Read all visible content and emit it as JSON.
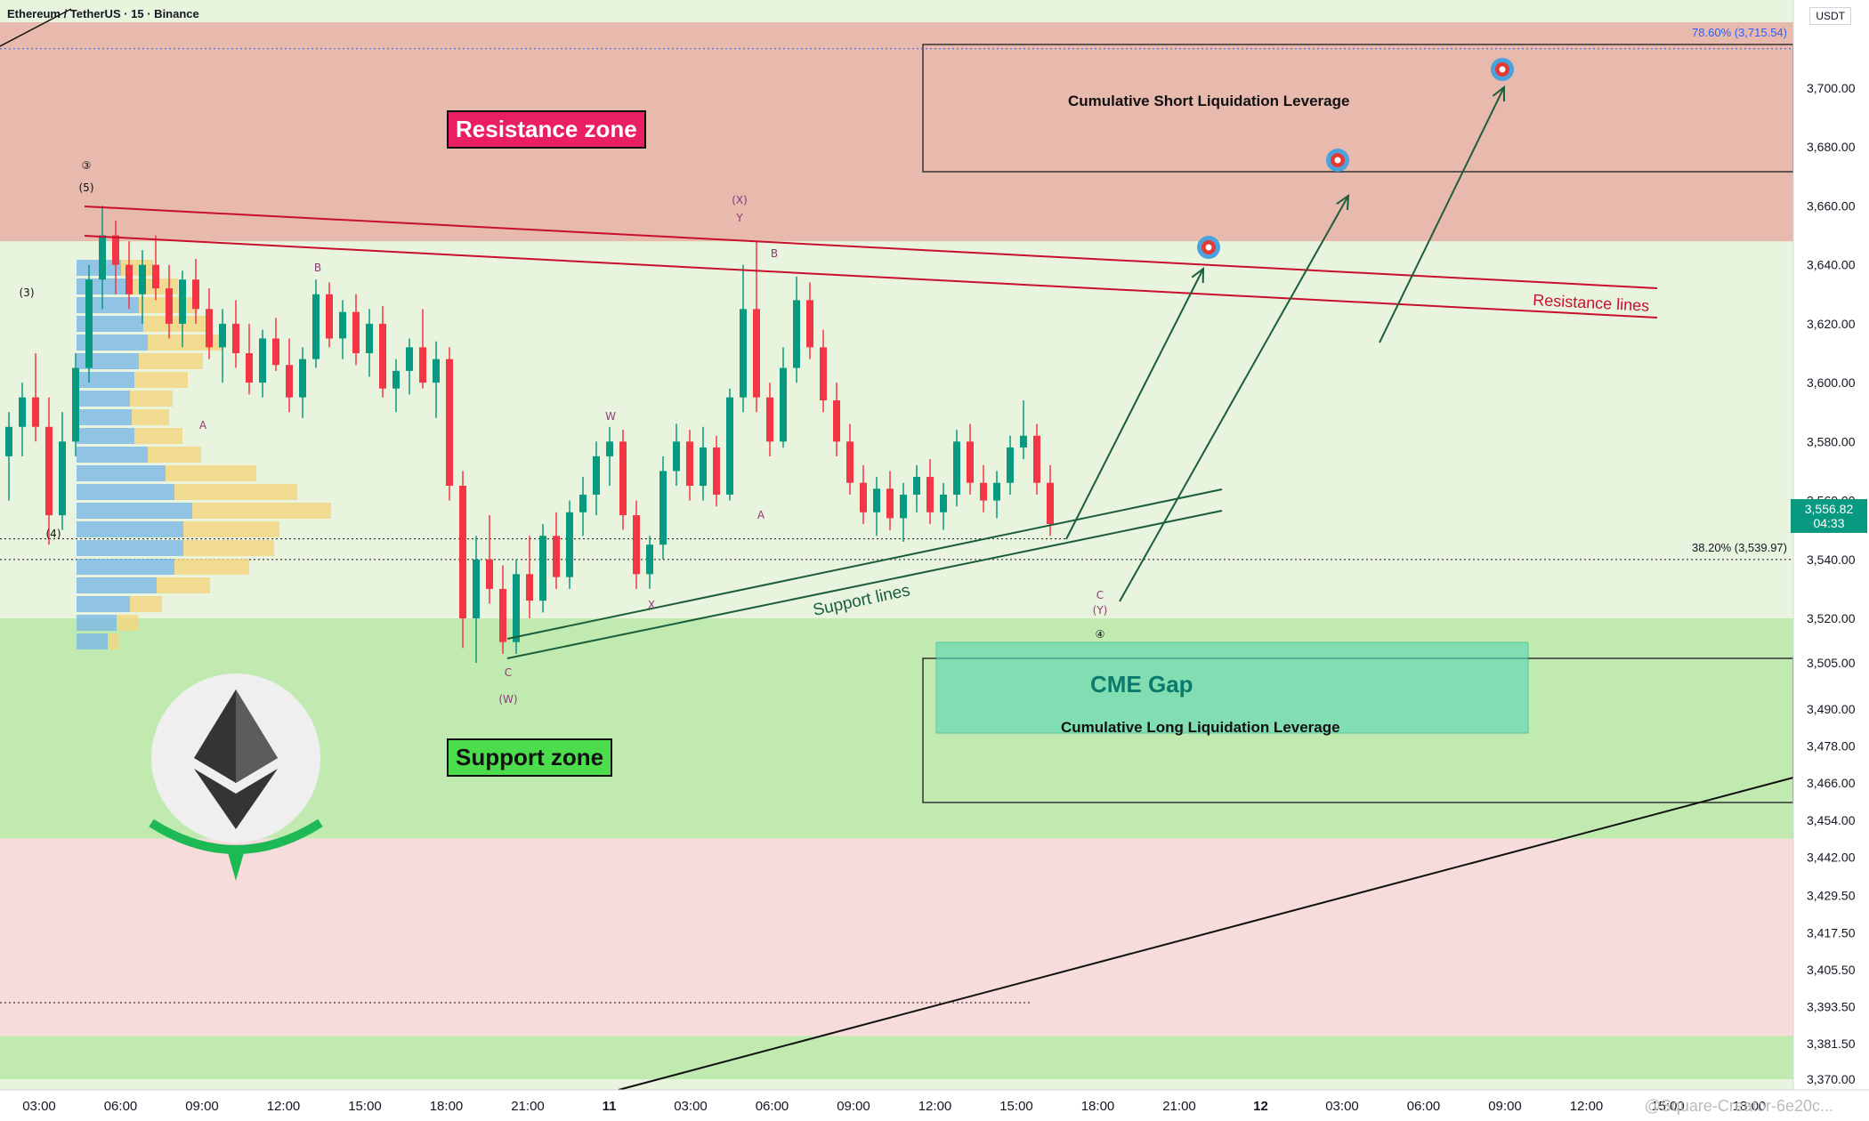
{
  "header": {
    "symbol_line": "Ethereum / TetherUS · 15 · Binance",
    "currency": "USDT"
  },
  "colors": {
    "resistance_fill": "#e8b9ad",
    "support_fill": "#c0eab0",
    "mid_fill": "#e8f4dd",
    "lower_fill": "#f7dcdc",
    "bull": "#089981",
    "bear": "#f23645",
    "resistance_line": "#c8102e",
    "support_line": "#1b5e3c"
  },
  "chart_data": {
    "type": "candlestick",
    "title": "Ethereum / TetherUS · 15 · Binance",
    "price_axis": {
      "ticks": [
        "3,700.00",
        "3,680.00",
        "3,660.00",
        "3,640.00",
        "3,620.00",
        "3,600.00",
        "3,580.00",
        "3,560.00",
        "3,540.00",
        "3,520.00",
        "3,505.00",
        "3,490.00",
        "3,478.00",
        "3,466.00",
        "3,454.00",
        "3,442.00",
        "3,429.50",
        "3,417.50",
        "3,405.50",
        "3,393.50",
        "3,381.50",
        "3,370.00"
      ],
      "current_price": "3,556.82",
      "countdown": "04:33"
    },
    "time_axis": {
      "ticks": [
        "03:00",
        "06:00",
        "09:00",
        "12:00",
        "15:00",
        "18:00",
        "21:00",
        "11",
        "03:00",
        "06:00",
        "09:00",
        "12:00",
        "15:00",
        "18:00",
        "21:00",
        "12",
        "03:00",
        "06:00",
        "09:00",
        "12:00",
        "15:00",
        "18:00"
      ]
    },
    "zones": [
      {
        "name": "Resistance zone",
        "from": 3648,
        "to": 3726
      },
      {
        "name": "Support zone",
        "from": 3448,
        "to": 3520
      },
      {
        "name": "Support zone (lower)",
        "from": 3370,
        "to": 3384
      }
    ],
    "fib_levels": [
      {
        "label": "78.60% (3,715.54)",
        "value": 3715.54
      },
      {
        "label": "38.20% (3,539.97)",
        "value": 3539.97
      }
    ],
    "annotations": {
      "resistance_zone": "Resistance zone",
      "support_zone": "Support zone",
      "resistance_lines": "Resistance lines",
      "support_lines": "Support lines",
      "short_liq": "Cumulative Short Liquidation Leverage",
      "long_liq": "Cumulative Long Liquidation Leverage",
      "cme_gap": "CME Gap"
    },
    "wave_labels": [
      "③",
      "(5)",
      "(3)",
      "(4)",
      "A",
      "B",
      "C",
      "(W)",
      "X",
      "W",
      "(X)",
      "Y",
      "A",
      "B",
      "C",
      "(Y)",
      "④"
    ],
    "candles": [
      {
        "o": 3575,
        "h": 3590,
        "l": 3560,
        "c": 3585
      },
      {
        "o": 3585,
        "h": 3600,
        "l": 3575,
        "c": 3595
      },
      {
        "o": 3595,
        "h": 3610,
        "l": 3580,
        "c": 3585
      },
      {
        "o": 3585,
        "h": 3595,
        "l": 3545,
        "c": 3555
      },
      {
        "o": 3555,
        "h": 3590,
        "l": 3550,
        "c": 3580
      },
      {
        "o": 3580,
        "h": 3610,
        "l": 3575,
        "c": 3605
      },
      {
        "o": 3605,
        "h": 3640,
        "l": 3600,
        "c": 3635
      },
      {
        "o": 3635,
        "h": 3660,
        "l": 3625,
        "c": 3650
      },
      {
        "o": 3650,
        "h": 3655,
        "l": 3630,
        "c": 3640
      },
      {
        "o": 3640,
        "h": 3648,
        "l": 3625,
        "c": 3630
      },
      {
        "o": 3630,
        "h": 3645,
        "l": 3620,
        "c": 3640
      },
      {
        "o": 3640,
        "h": 3650,
        "l": 3628,
        "c": 3632
      },
      {
        "o": 3632,
        "h": 3640,
        "l": 3615,
        "c": 3620
      },
      {
        "o": 3620,
        "h": 3638,
        "l": 3612,
        "c": 3635
      },
      {
        "o": 3635,
        "h": 3642,
        "l": 3620,
        "c": 3625
      },
      {
        "o": 3625,
        "h": 3632,
        "l": 3608,
        "c": 3612
      },
      {
        "o": 3612,
        "h": 3625,
        "l": 3600,
        "c": 3620
      },
      {
        "o": 3620,
        "h": 3628,
        "l": 3605,
        "c": 3610
      },
      {
        "o": 3610,
        "h": 3620,
        "l": 3596,
        "c": 3600
      },
      {
        "o": 3600,
        "h": 3618,
        "l": 3595,
        "c": 3615
      },
      {
        "o": 3615,
        "h": 3622,
        "l": 3604,
        "c": 3606
      },
      {
        "o": 3606,
        "h": 3615,
        "l": 3590,
        "c": 3595
      },
      {
        "o": 3595,
        "h": 3612,
        "l": 3588,
        "c": 3608
      },
      {
        "o": 3608,
        "h": 3635,
        "l": 3605,
        "c": 3630
      },
      {
        "o": 3630,
        "h": 3634,
        "l": 3612,
        "c": 3615
      },
      {
        "o": 3615,
        "h": 3628,
        "l": 3608,
        "c": 3624
      },
      {
        "o": 3624,
        "h": 3630,
        "l": 3606,
        "c": 3610
      },
      {
        "o": 3610,
        "h": 3625,
        "l": 3602,
        "c": 3620
      },
      {
        "o": 3620,
        "h": 3626,
        "l": 3595,
        "c": 3598
      },
      {
        "o": 3598,
        "h": 3608,
        "l": 3590,
        "c": 3604
      },
      {
        "o": 3604,
        "h": 3615,
        "l": 3596,
        "c": 3612
      },
      {
        "o": 3612,
        "h": 3625,
        "l": 3598,
        "c": 3600
      },
      {
        "o": 3600,
        "h": 3614,
        "l": 3588,
        "c": 3608
      },
      {
        "o": 3608,
        "h": 3612,
        "l": 3560,
        "c": 3565
      },
      {
        "o": 3565,
        "h": 3570,
        "l": 3510,
        "c": 3520
      },
      {
        "o": 3520,
        "h": 3548,
        "l": 3505,
        "c": 3540
      },
      {
        "o": 3540,
        "h": 3555,
        "l": 3525,
        "c": 3530
      },
      {
        "o": 3530,
        "h": 3538,
        "l": 3508,
        "c": 3512
      },
      {
        "o": 3512,
        "h": 3540,
        "l": 3508,
        "c": 3535
      },
      {
        "o": 3535,
        "h": 3548,
        "l": 3520,
        "c": 3526
      },
      {
        "o": 3526,
        "h": 3552,
        "l": 3522,
        "c": 3548
      },
      {
        "o": 3548,
        "h": 3556,
        "l": 3530,
        "c": 3534
      },
      {
        "o": 3534,
        "h": 3560,
        "l": 3530,
        "c": 3556
      },
      {
        "o": 3556,
        "h": 3568,
        "l": 3548,
        "c": 3562
      },
      {
        "o": 3562,
        "h": 3580,
        "l": 3555,
        "c": 3575
      },
      {
        "o": 3575,
        "h": 3585,
        "l": 3565,
        "c": 3580
      },
      {
        "o": 3580,
        "h": 3584,
        "l": 3550,
        "c": 3555
      },
      {
        "o": 3555,
        "h": 3560,
        "l": 3530,
        "c": 3535
      },
      {
        "o": 3535,
        "h": 3548,
        "l": 3530,
        "c": 3545
      },
      {
        "o": 3545,
        "h": 3575,
        "l": 3540,
        "c": 3570
      },
      {
        "o": 3570,
        "h": 3586,
        "l": 3565,
        "c": 3580
      },
      {
        "o": 3580,
        "h": 3584,
        "l": 3560,
        "c": 3565
      },
      {
        "o": 3565,
        "h": 3585,
        "l": 3560,
        "c": 3578
      },
      {
        "o": 3578,
        "h": 3582,
        "l": 3558,
        "c": 3562
      },
      {
        "o": 3562,
        "h": 3598,
        "l": 3560,
        "c": 3595
      },
      {
        "o": 3595,
        "h": 3640,
        "l": 3590,
        "c": 3625
      },
      {
        "o": 3625,
        "h": 3648,
        "l": 3590,
        "c": 3595
      },
      {
        "o": 3595,
        "h": 3600,
        "l": 3575,
        "c": 3580
      },
      {
        "o": 3580,
        "h": 3612,
        "l": 3578,
        "c": 3605
      },
      {
        "o": 3605,
        "h": 3636,
        "l": 3600,
        "c": 3628
      },
      {
        "o": 3628,
        "h": 3634,
        "l": 3608,
        "c": 3612
      },
      {
        "o": 3612,
        "h": 3618,
        "l": 3590,
        "c": 3594
      },
      {
        "o": 3594,
        "h": 3600,
        "l": 3575,
        "c": 3580
      },
      {
        "o": 3580,
        "h": 3586,
        "l": 3562,
        "c": 3566
      },
      {
        "o": 3566,
        "h": 3572,
        "l": 3552,
        "c": 3556
      },
      {
        "o": 3556,
        "h": 3568,
        "l": 3548,
        "c": 3564
      },
      {
        "o": 3564,
        "h": 3570,
        "l": 3550,
        "c": 3554
      },
      {
        "o": 3554,
        "h": 3566,
        "l": 3546,
        "c": 3562
      },
      {
        "o": 3562,
        "h": 3572,
        "l": 3556,
        "c": 3568
      },
      {
        "o": 3568,
        "h": 3574,
        "l": 3552,
        "c": 3556
      },
      {
        "o": 3556,
        "h": 3566,
        "l": 3550,
        "c": 3562
      },
      {
        "o": 3562,
        "h": 3584,
        "l": 3558,
        "c": 3580
      },
      {
        "o": 3580,
        "h": 3586,
        "l": 3562,
        "c": 3566
      },
      {
        "o": 3566,
        "h": 3572,
        "l": 3556,
        "c": 3560
      },
      {
        "o": 3560,
        "h": 3570,
        "l": 3554,
        "c": 3566
      },
      {
        "o": 3566,
        "h": 3582,
        "l": 3562,
        "c": 3578
      },
      {
        "o": 3578,
        "h": 3594,
        "l": 3574,
        "c": 3582
      },
      {
        "o": 3582,
        "h": 3586,
        "l": 3562,
        "c": 3566
      },
      {
        "o": 3566,
        "h": 3572,
        "l": 3548,
        "c": 3552
      }
    ]
  },
  "watermark": "@Square-Creator-6e20c..."
}
